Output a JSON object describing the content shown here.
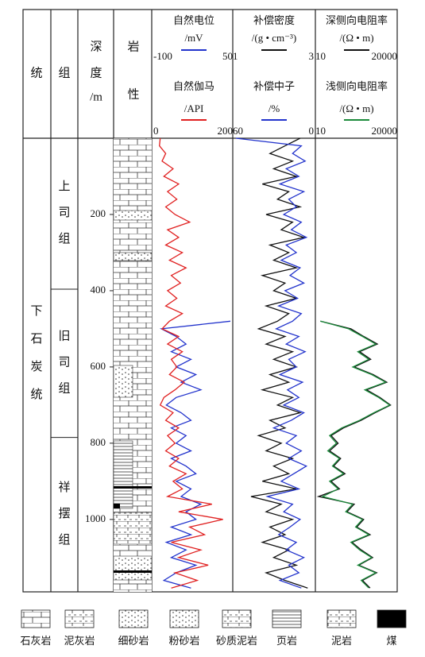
{
  "chart_data": {
    "type": "well-log",
    "columns": {
      "system": "统",
      "formation": "组",
      "depth": [
        "深",
        "度",
        "/m"
      ],
      "lithology": [
        "岩",
        "性"
      ]
    },
    "system_name": "下石炭统",
    "formations": [
      {
        "name": "上司组",
        "range": [
          0,
          396
        ]
      },
      {
        "name": "旧司组",
        "range": [
          396,
          785
        ]
      },
      {
        "name": "祥摆组",
        "range": [
          785,
          1190
        ]
      }
    ],
    "ylim": [
      0,
      1190
    ],
    "yticks": [
      200,
      400,
      600,
      800,
      1000
    ],
    "depth": [
      0,
      20,
      40,
      60,
      80,
      100,
      120,
      140,
      160,
      180,
      200,
      220,
      240,
      260,
      280,
      300,
      320,
      340,
      360,
      380,
      400,
      420,
      440,
      460,
      480,
      500,
      520,
      540,
      560,
      580,
      600,
      620,
      640,
      660,
      680,
      700,
      720,
      740,
      760,
      780,
      800,
      820,
      840,
      860,
      880,
      900,
      920,
      940,
      960,
      980,
      1000,
      1020,
      1040,
      1060,
      1080,
      1100,
      1120,
      1140,
      1160,
      1180
    ],
    "tracks": [
      {
        "series": [
          {
            "name": "自然电位",
            "unit": "/mV",
            "color": "#2233cc",
            "xlim": [
              -100,
              50
            ],
            "xticks": [
              -100,
              50
            ],
            "log": false,
            "values": [
              null,
              null,
              null,
              null,
              null,
              null,
              null,
              null,
              null,
              null,
              null,
              null,
              null,
              null,
              null,
              null,
              null,
              null,
              null,
              null,
              null,
              null,
              null,
              null,
              50,
              -90,
              -60,
              -40,
              -70,
              -30,
              -60,
              -20,
              -50,
              -10,
              -60,
              -80,
              -50,
              -30,
              -70,
              -40,
              -60,
              -30,
              -70,
              -40,
              -20,
              -60,
              -30,
              -50,
              -10,
              -40,
              -20,
              -70,
              -30,
              -80,
              -40,
              -70,
              -20,
              -60,
              -85,
              -30
            ]
          },
          {
            "name": "自然伽马",
            "unit": "/API",
            "color": "#e02020",
            "xlim": [
              0,
              200
            ],
            "xticks": [
              0,
              200
            ],
            "log": false,
            "values": [
              10,
              8,
              25,
              15,
              45,
              20,
              60,
              30,
              55,
              25,
              50,
              90,
              30,
              60,
              25,
              70,
              35,
              80,
              40,
              65,
              30,
              55,
              25,
              70,
              35,
              15,
              60,
              30,
              70,
              40,
              55,
              35,
              75,
              50,
              20,
              10,
              45,
              25,
              60,
              30,
              50,
              25,
              60,
              35,
              80,
              45,
              70,
              30,
              150,
              60,
              180,
              90,
              130,
              40,
              120,
              60,
              140,
              50,
              110,
              40
            ]
          }
        ]
      },
      {
        "series": [
          {
            "name": "补偿密度",
            "unit": "/(g • cm⁻³)",
            "color": "#111111",
            "xlim": [
              1,
              3
            ],
            "xticks": [
              1,
              3
            ],
            "log": false,
            "values": [
              2.7,
              2.3,
              1.9,
              2.5,
              2.0,
              2.6,
              1.7,
              2.4,
              2.1,
              2.7,
              1.8,
              2.5,
              2.2,
              2.8,
              1.9,
              2.4,
              2.0,
              2.6,
              1.7,
              2.3,
              2.0,
              2.6,
              1.8,
              2.4,
              2.1,
              1.6,
              2.3,
              1.8,
              2.5,
              2.0,
              2.6,
              1.9,
              2.4,
              1.7,
              2.5,
              2.1,
              2.7,
              1.9,
              2.3,
              1.6,
              2.2,
              1.8,
              2.5,
              2.0,
              2.4,
              1.7,
              2.6,
              1.4,
              2.2,
              1.8,
              2.5,
              1.9,
              2.3,
              1.7,
              2.4,
              2.0,
              2.6,
              1.8,
              2.3,
              2.9
            ]
          },
          {
            "name": "补偿中子",
            "unit": "/%",
            "color": "#2233cc",
            "xlim": [
              60,
              0
            ],
            "xticks": [
              60,
              0
            ],
            "log": false,
            "values": [
              60,
              8,
              15,
              5,
              20,
              10,
              25,
              6,
              18,
              12,
              22,
              8,
              16,
              4,
              20,
              12,
              24,
              9,
              17,
              6,
              21,
              11,
              26,
              8,
              15,
              28,
              10,
              20,
              5,
              18,
              12,
              25,
              7,
              19,
              10,
              22,
              6,
              16,
              30,
              12,
              20,
              8,
              18,
              4,
              14,
              24,
              10,
              35,
              15,
              22,
              9,
              17,
              26,
              12,
              20,
              6,
              18,
              10,
              25,
              8
            ]
          }
        ]
      },
      {
        "series": [
          {
            "name": "深侧向电阻率",
            "unit": "/(Ω • m)",
            "color": "#111111",
            "xlim": [
              10,
              20000
            ],
            "xticks": [
              10,
              20000
            ],
            "log": true,
            "values": [
              null,
              null,
              null,
              null,
              null,
              null,
              null,
              null,
              null,
              null,
              null,
              null,
              null,
              null,
              null,
              null,
              null,
              null,
              null,
              null,
              null,
              null,
              null,
              null,
              12,
              250,
              900,
              3500,
              600,
              1800,
              350,
              2300,
              9000,
              1200,
              4500,
              13000,
              2800,
              700,
              120,
              35,
              70,
              30,
              90,
              45,
              140,
              35,
              80,
              10,
              350,
              170,
              900,
              450,
              1700,
              280,
              700,
              2200,
              550,
              3300,
              800,
              1700
            ]
          },
          {
            "name": "浅侧向电阻率",
            "unit": "/(Ω • m)",
            "color": "#1a8a3a",
            "xlim": [
              10,
              20000
            ],
            "xticks": [
              10,
              20000
            ],
            "log": true,
            "values": [
              null,
              null,
              null,
              null,
              null,
              null,
              null,
              null,
              null,
              null,
              null,
              null,
              null,
              null,
              null,
              null,
              null,
              null,
              null,
              null,
              null,
              null,
              null,
              null,
              12,
              200,
              800,
              3000,
              500,
              1500,
              300,
              2000,
              8000,
              1000,
              4000,
              12000,
              2500,
              600,
              100,
              30,
              60,
              25,
              80,
              40,
              120,
              30,
              70,
              15,
              300,
              150,
              800,
              400,
              1500,
              250,
              600,
              2000,
              500,
              3000,
              700,
              1500
            ]
          }
        ]
      }
    ],
    "lithology_legend": [
      "石灰岩",
      "泥灰岩",
      "细砂岩",
      "粉砂岩",
      "砂质泥岩",
      "页岩",
      "泥岩",
      "煤"
    ]
  }
}
